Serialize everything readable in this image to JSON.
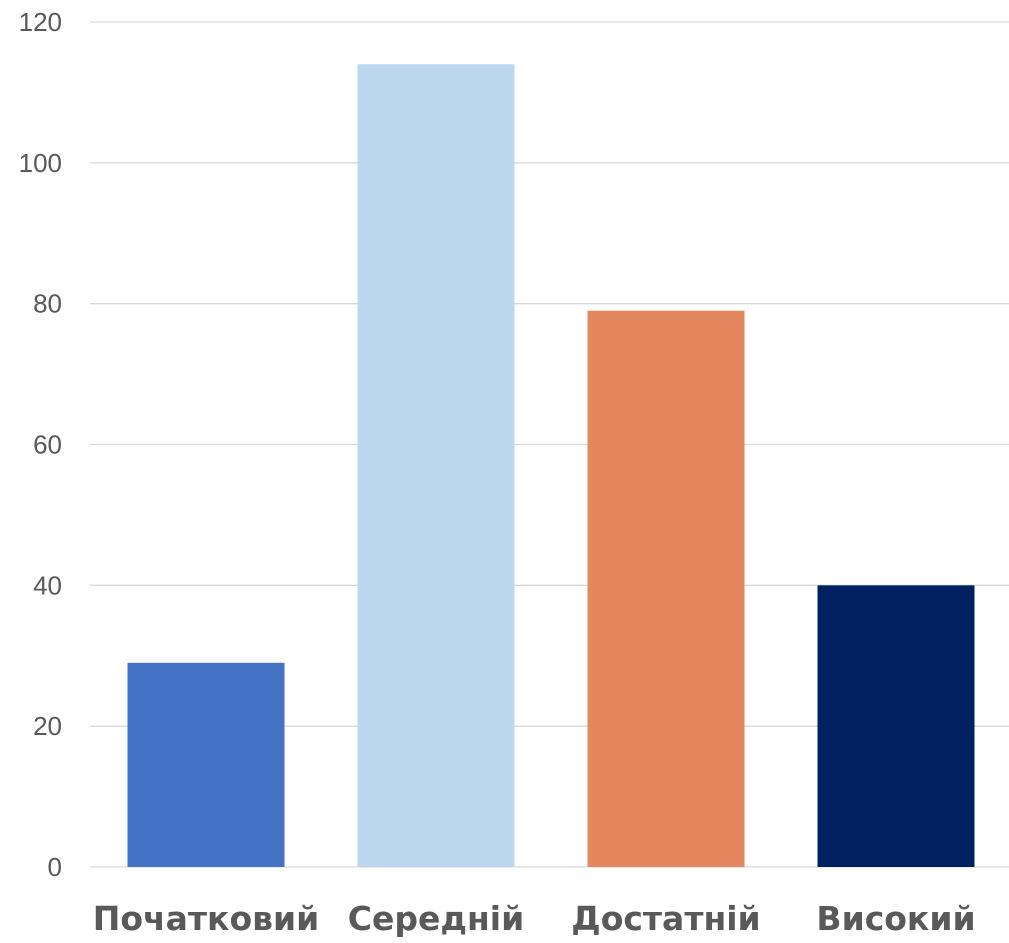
{
  "chart_data": {
    "type": "bar",
    "categories": [
      "Початковий",
      "Середній",
      "Достатній",
      "Високий"
    ],
    "values": [
      29,
      114,
      79,
      40
    ],
    "colors": [
      "#4472C4",
      "#BDD7EE",
      "#E2875E",
      "#002060"
    ],
    "title": "",
    "xlabel": "",
    "ylabel": "",
    "ylim": [
      0,
      120
    ],
    "yticks": [
      0,
      20,
      40,
      60,
      80,
      100,
      120
    ],
    "ytick_labels": [
      "0",
      "20",
      "40",
      "60",
      "80",
      "100",
      "120"
    ],
    "grid": true,
    "legend": "none"
  }
}
